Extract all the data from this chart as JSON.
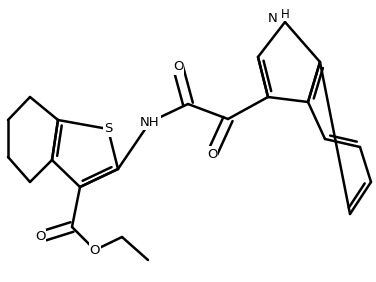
{
  "background": "#ffffff",
  "line_color": "#000000",
  "line_width": 1.8,
  "figsize": [
    3.76,
    2.82
  ],
  "dpi": 100,
  "xlim": [
    0,
    376
  ],
  "ylim": [
    0,
    282
  ],
  "atoms": {
    "S": "S",
    "NH_amide": "NH",
    "O1": "O",
    "O2": "O",
    "O_ester1": "O",
    "O_ester2": "O",
    "NH_indole": "H"
  }
}
